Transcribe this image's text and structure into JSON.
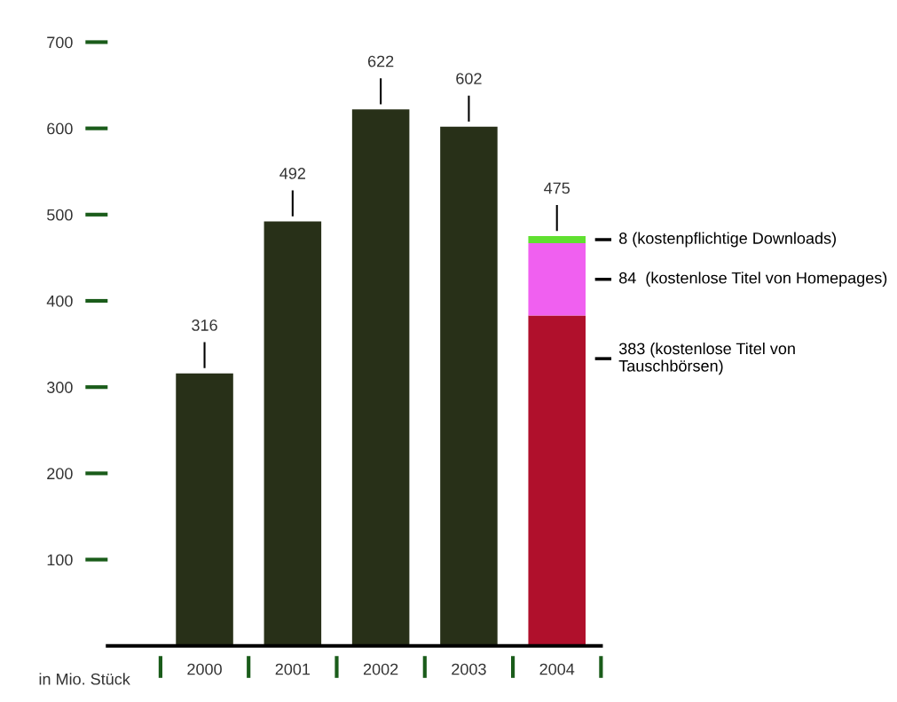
{
  "chart_data": {
    "type": "bar",
    "stacked": true,
    "categories": [
      "2000",
      "2001",
      "2002",
      "2003",
      "2004"
    ],
    "xlabel": "in Mio. Stück",
    "series": [
      {
        "color": "#283018",
        "values": [
          316,
          492,
          622,
          602,
          null
        ]
      },
      {
        "name": "383 (kostenlose Titel von Tauschbörsen)",
        "color": "#b0102c",
        "values": [
          null,
          null,
          null,
          null,
          383
        ]
      },
      {
        "name": "84  (kostenlose Titel von Homepages)",
        "color": "#f060f0",
        "values": [
          null,
          null,
          null,
          null,
          84
        ]
      },
      {
        "name": "8 (kostenpflichtige Downloads)",
        "color": "#60e030",
        "values": [
          null,
          null,
          null,
          null,
          8
        ]
      }
    ],
    "totals": [
      "316",
      "492",
      "622",
      "602",
      "475"
    ],
    "ylim": [
      0,
      700
    ],
    "yticks": [
      100,
      200,
      300,
      400,
      500,
      600,
      700
    ],
    "grid": false,
    "legend": "right"
  }
}
